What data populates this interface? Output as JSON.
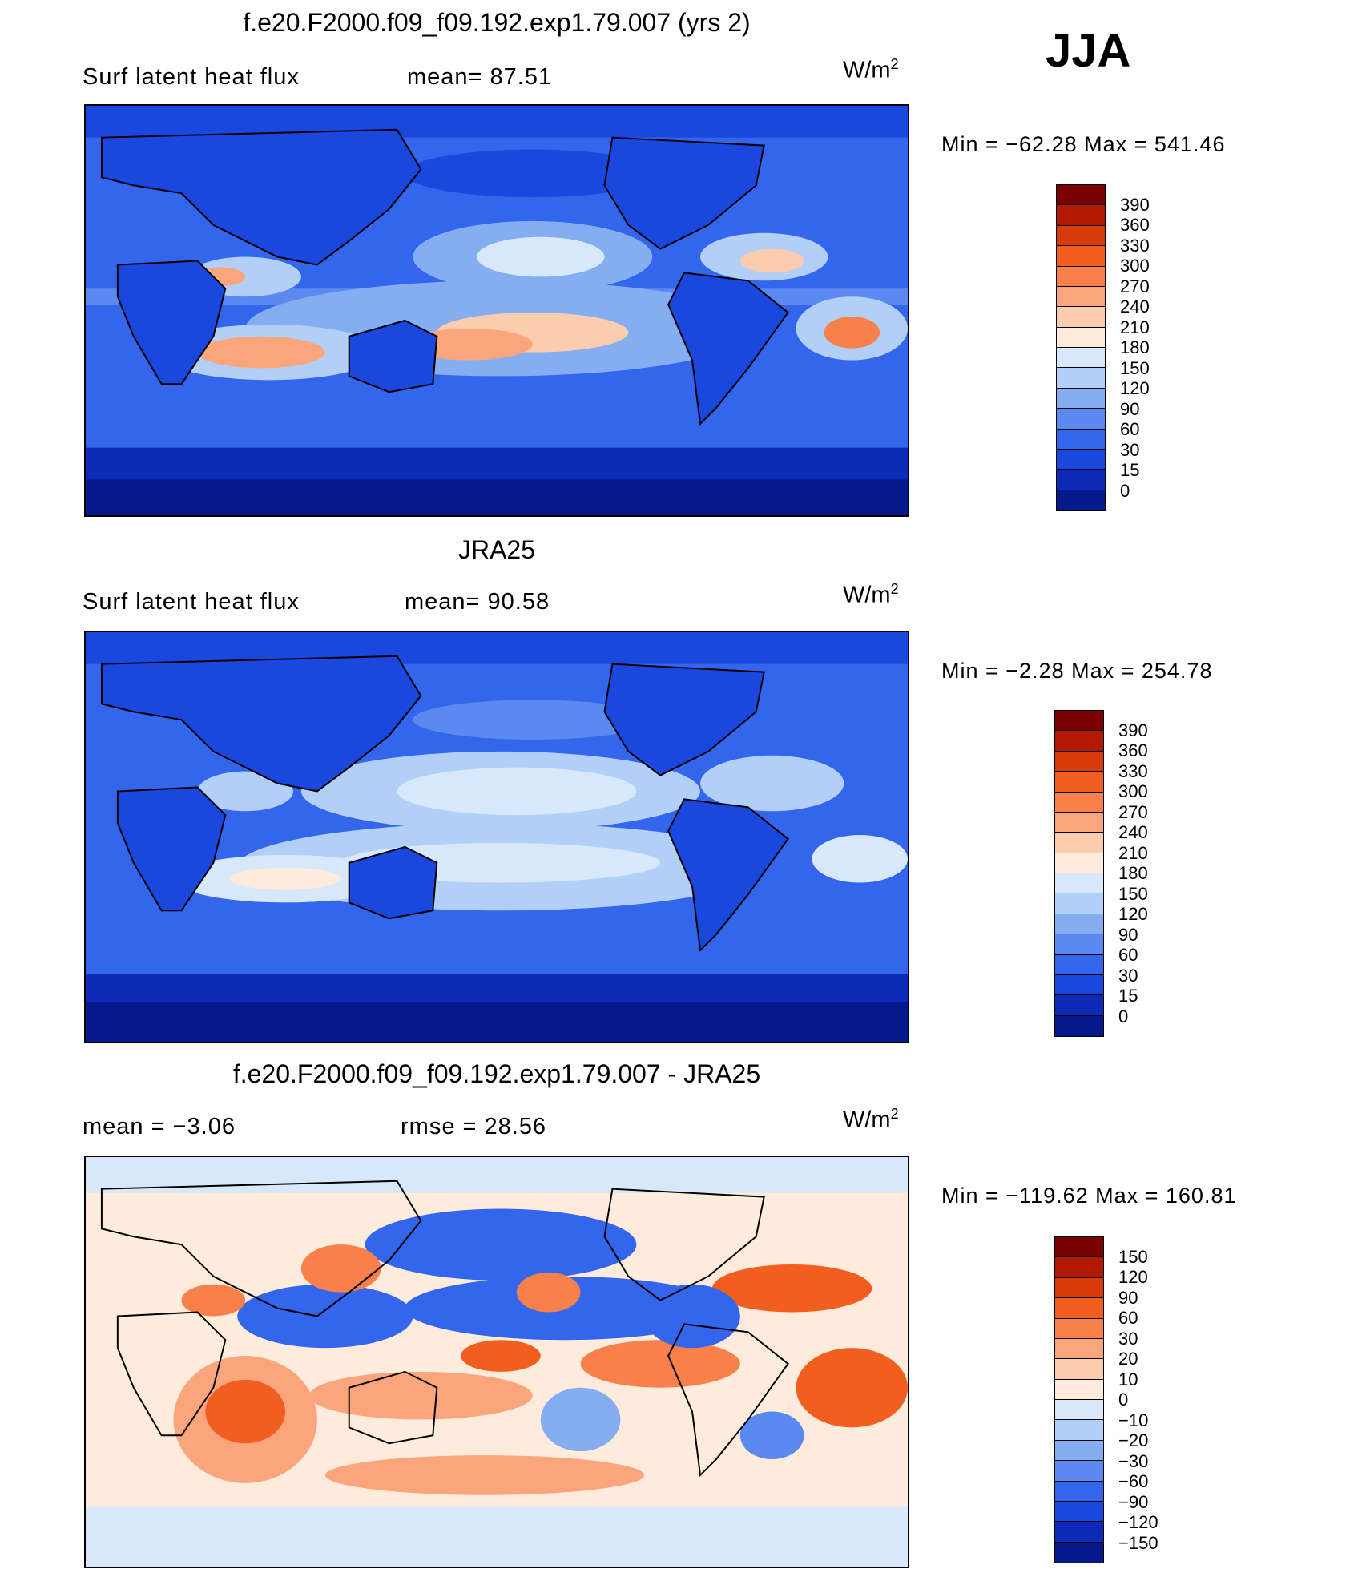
{
  "season": "JJA",
  "units": "W/m",
  "units_sup": "2",
  "panels": [
    {
      "title": "f.e20.F2000.f09_f09.192.exp1.79.007 (yrs 2)",
      "left_label": "Surf  latent  heat  flux",
      "mid_label": "mean=   87.51",
      "minmax": "Min  =  −62.28  Max  =  541.46",
      "colorbar_labels": [
        "390",
        "360",
        "330",
        "300",
        "270",
        "240",
        "210",
        "180",
        "150",
        "120",
        "90",
        "60",
        "30",
        "15",
        "0"
      ]
    },
    {
      "title": "JRA25",
      "left_label": "Surf  latent  heat  flux",
      "mid_label": "mean=   90.58",
      "minmax": "Min  =    −2.28  Max  =  254.78",
      "colorbar_labels": [
        "390",
        "360",
        "330",
        "300",
        "270",
        "240",
        "210",
        "180",
        "150",
        "120",
        "90",
        "60",
        "30",
        "15",
        "0"
      ]
    },
    {
      "title": "f.e20.F2000.f09_f09.192.exp1.79.007 - JRA25",
      "left_label": "mean  =    −3.06",
      "mid_label": "rmse  =    28.56",
      "minmax": "Min  =  −119.62  Max  =  160.81",
      "colorbar_labels": [
        "150",
        "120",
        "90",
        "60",
        "30",
        "20",
        "10",
        "0",
        "−10",
        "−20",
        "−30",
        "−60",
        "−90",
        "−120",
        "−150"
      ]
    }
  ],
  "colors": {
    "abs_scale": [
      "#7a0000",
      "#b11a00",
      "#d93a0a",
      "#f25e20",
      "#f8804a",
      "#fba57c",
      "#fcccaf",
      "#fdebdc",
      "#d7e8fb",
      "#b2cff8",
      "#85aef2",
      "#5a8af0",
      "#3366ec",
      "#1a47dd",
      "#0d2bb8",
      "#041a8c"
    ],
    "diff_scale": [
      "#7a0000",
      "#b11a00",
      "#d93a0a",
      "#f25e20",
      "#f8804a",
      "#fba57c",
      "#fcccaf",
      "#fdebdc",
      "#d7e8fb",
      "#b2cff8",
      "#85aef2",
      "#5a8af0",
      "#3366ec",
      "#1a47dd",
      "#0d2bb8",
      "#041a8c"
    ]
  }
}
